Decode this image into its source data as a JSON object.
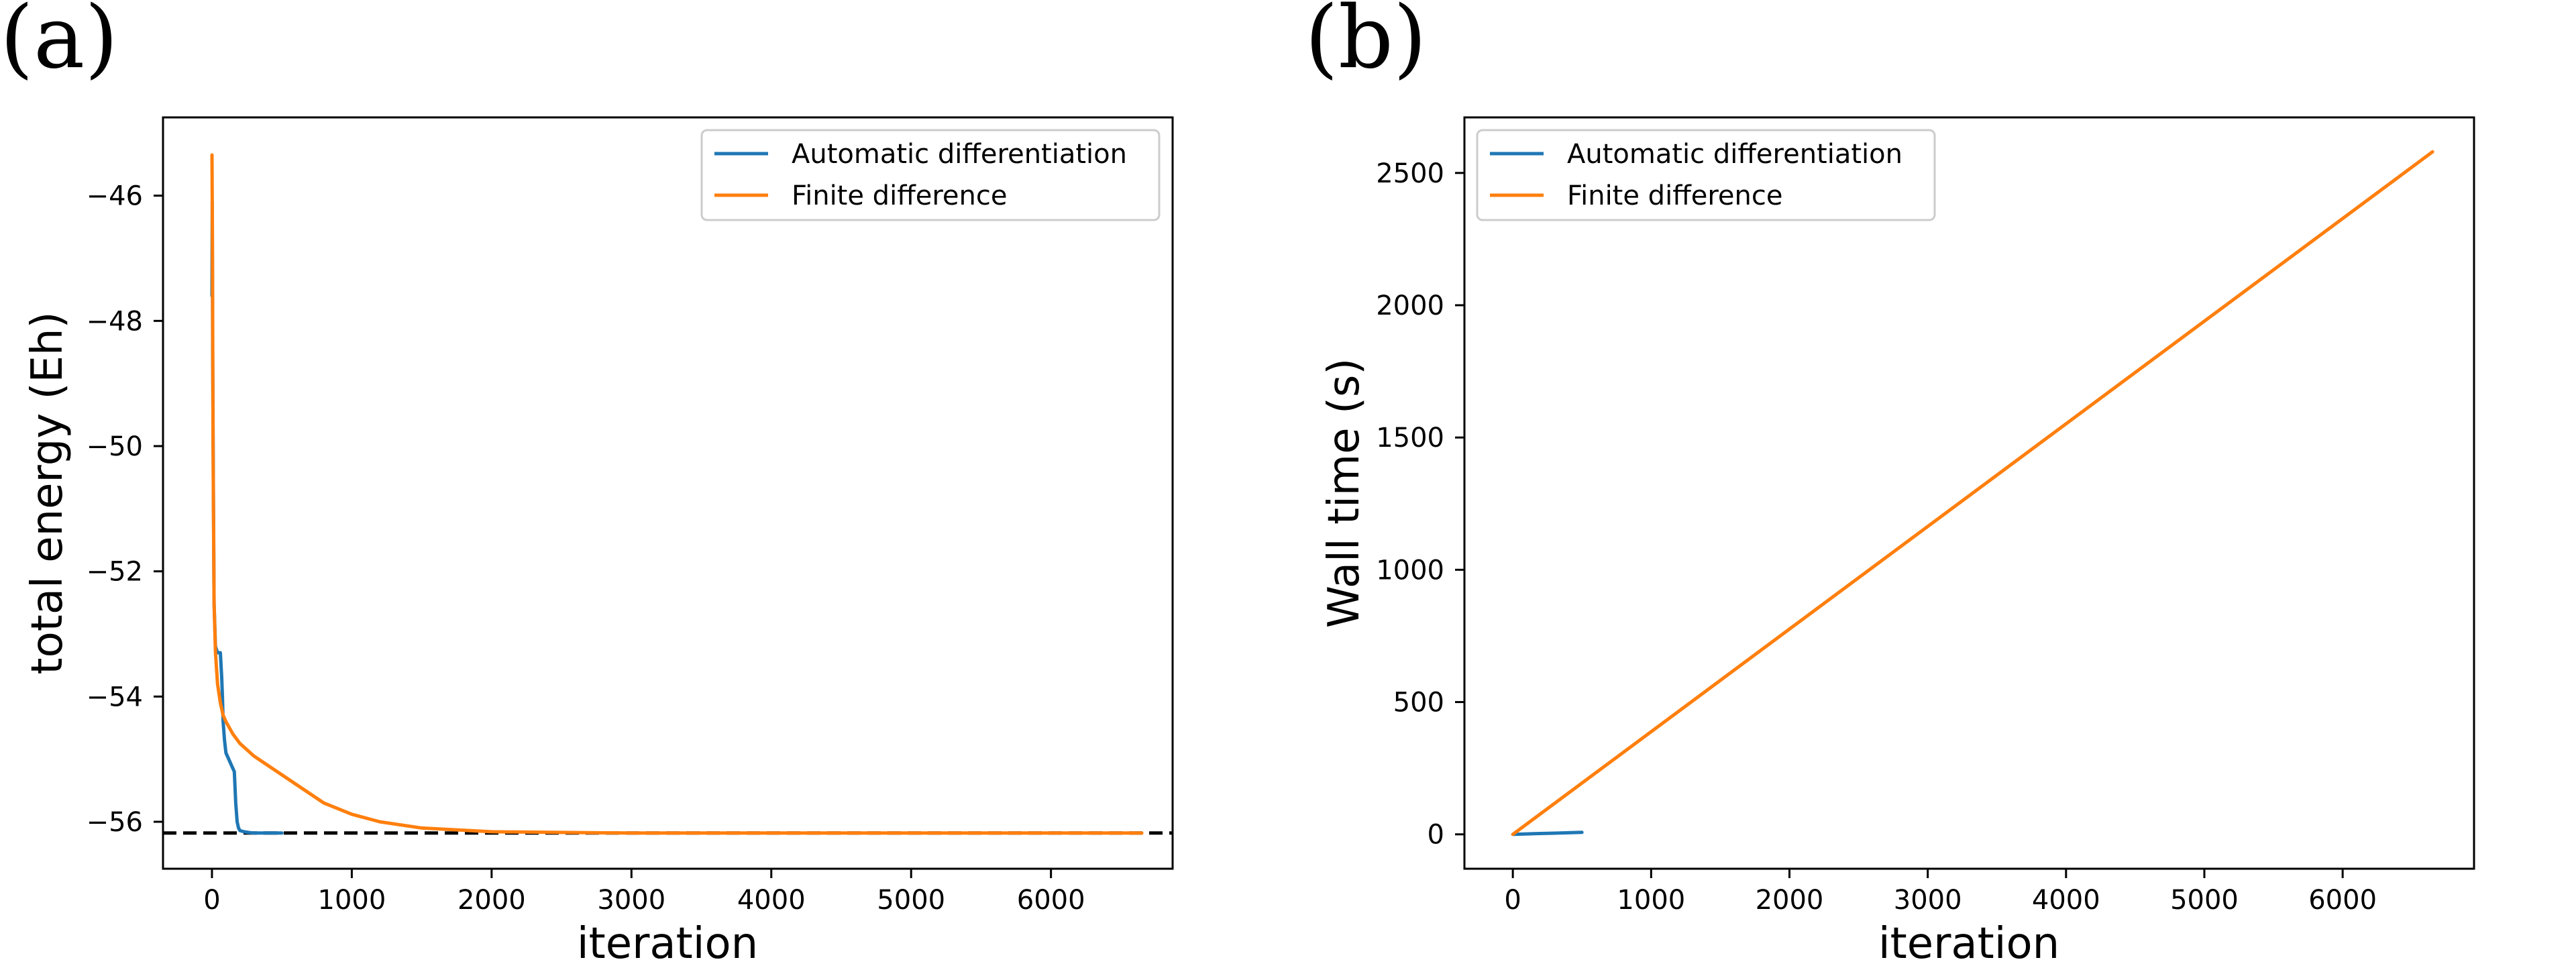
{
  "colors": {
    "auto_diff": "#1f77b4",
    "finite_diff": "#ff7f0e",
    "reference": "#000000"
  },
  "chart_data": [
    {
      "type": "line",
      "panel_label": "(a)",
      "xlabel": "iteration",
      "ylabel": "total energy (Eh)",
      "xlim": [
        -350,
        6870
      ],
      "ylim": [
        -56.75,
        -44.75
      ],
      "xticks": [
        0,
        1000,
        2000,
        3000,
        4000,
        5000,
        6000
      ],
      "xtick_labels": [
        "0",
        "1000",
        "2000",
        "3000",
        "4000",
        "5000",
        "6000"
      ],
      "yticks": [
        -46,
        -48,
        -50,
        -52,
        -54,
        -56
      ],
      "ytick_labels": [
        "−46",
        "−48",
        "−50",
        "−52",
        "−54",
        "−56"
      ],
      "legend_position": "top-right",
      "reference_line": {
        "y": -56.18,
        "style": "dashed"
      },
      "series": [
        {
          "name": "Automatic differentiation",
          "color_key": "auto_diff",
          "x": [
            0,
            2,
            5,
            10,
            15,
            25,
            40,
            60,
            70,
            75,
            80,
            90,
            100,
            120,
            140,
            160,
            170,
            180,
            190,
            200,
            230,
            260,
            300,
            400,
            500
          ],
          "y": [
            -47.6,
            -46.1,
            -48.5,
            -50.5,
            -52.5,
            -53.2,
            -53.3,
            -53.3,
            -53.7,
            -54.0,
            -54.4,
            -54.7,
            -54.9,
            -55.0,
            -55.1,
            -55.2,
            -55.7,
            -56.0,
            -56.1,
            -56.14,
            -56.16,
            -56.17,
            -56.18,
            -56.18,
            -56.18
          ]
        },
        {
          "name": "Finite difference",
          "color_key": "finite_diff",
          "x": [
            0,
            3,
            8,
            15,
            25,
            40,
            60,
            80,
            100,
            150,
            200,
            300,
            400,
            500,
            600,
            700,
            800,
            1000,
            1200,
            1500,
            2000,
            2500,
            3000,
            4000,
            5000,
            6000,
            6650
          ],
          "y": [
            -45.35,
            -46.5,
            -50.0,
            -52.5,
            -53.3,
            -53.8,
            -54.1,
            -54.3,
            -54.4,
            -54.6,
            -54.75,
            -54.95,
            -55.1,
            -55.25,
            -55.4,
            -55.55,
            -55.7,
            -55.88,
            -56.0,
            -56.1,
            -56.16,
            -56.17,
            -56.18,
            -56.18,
            -56.18,
            -56.18,
            -56.18
          ]
        }
      ]
    },
    {
      "type": "line",
      "panel_label": "(b)",
      "xlabel": "iteration",
      "ylabel": "Wall time (s)",
      "xlim": [
        -350,
        6950
      ],
      "ylim": [
        -130,
        2710
      ],
      "xticks": [
        0,
        1000,
        2000,
        3000,
        4000,
        5000,
        6000
      ],
      "xtick_labels": [
        "0",
        "1000",
        "2000",
        "3000",
        "4000",
        "5000",
        "6000"
      ],
      "yticks": [
        0,
        500,
        1000,
        1500,
        2000,
        2500
      ],
      "ytick_labels": [
        "0",
        "500",
        "1000",
        "1500",
        "2000",
        "2500"
      ],
      "legend_position": "top-left",
      "series": [
        {
          "name": "Automatic differentiation",
          "color_key": "auto_diff",
          "x": [
            0,
            100,
            200,
            300,
            400,
            500
          ],
          "y": [
            0,
            1.5,
            3,
            4.5,
            6,
            7.5
          ]
        },
        {
          "name": "Finite difference",
          "color_key": "finite_diff",
          "x": [
            0,
            6650
          ],
          "y": [
            0,
            2580
          ]
        }
      ]
    }
  ]
}
